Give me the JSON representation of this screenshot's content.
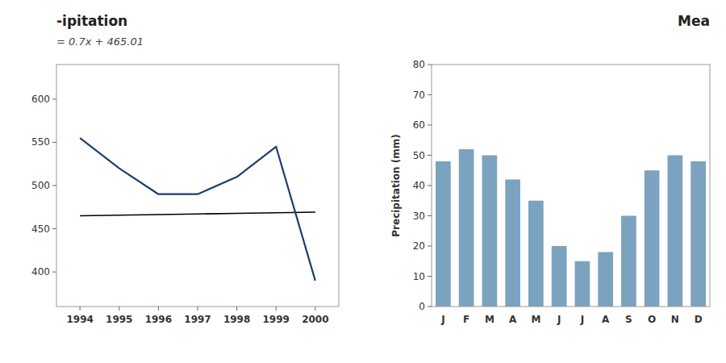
{
  "chart_data": [
    {
      "type": "line",
      "title": "-ipitation",
      "subtitle": "= 0.7x + 465.01",
      "x": [
        1994,
        1995,
        1996,
        1997,
        1998,
        1999,
        2000
      ],
      "series": [
        {
          "color": "#1a3f6f",
          "values": [
            555,
            520,
            490,
            490,
            510,
            545,
            390
          ]
        },
        {
          "color": "#000000",
          "values": [
            465.01,
            465.71,
            466.41,
            467.11,
            467.81,
            468.51,
            469.21
          ]
        }
      ],
      "xlim": [
        1993.4,
        2000.6
      ],
      "xticks": [
        1994,
        1995,
        1996,
        1997,
        1998,
        1999,
        2000
      ],
      "ylim": [
        360,
        640
      ],
      "yticks": [
        400,
        450,
        500,
        550,
        600
      ]
    },
    {
      "type": "bar",
      "title": "Mea",
      "categories": [
        "J",
        "F",
        "M",
        "A",
        "M",
        "J",
        "J",
        "A",
        "S",
        "O",
        "N",
        "D"
      ],
      "values": [
        48,
        52,
        50,
        42,
        35,
        20,
        15,
        18,
        30,
        45,
        50,
        48
      ],
      "color": "#7ba3c0",
      "y_label": "Precipitation (mm)",
      "ylim": [
        0,
        80
      ],
      "yticks": [
        0,
        10,
        20,
        30,
        40,
        50,
        60,
        70,
        80
      ]
    }
  ]
}
